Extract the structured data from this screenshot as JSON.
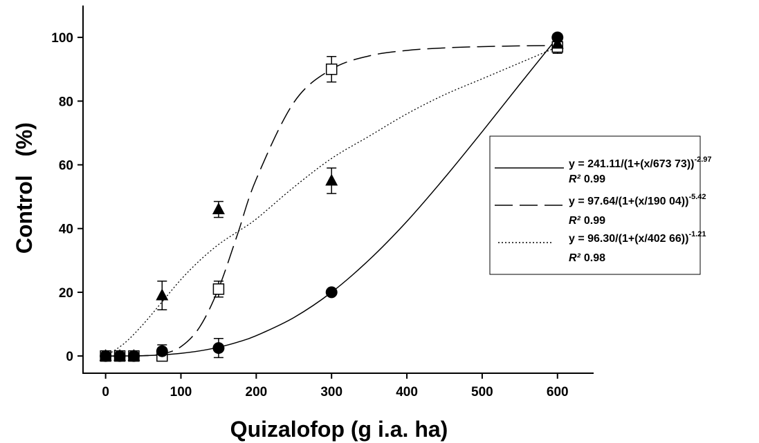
{
  "chart_data": {
    "type": "scatter",
    "xlabel": "Quizalofop (g i.a. ha)",
    "ylabel": "Control   (%)",
    "x": [
      0,
      18.75,
      37.5,
      75,
      150,
      300,
      600
    ],
    "xlim": [
      -30,
      648
    ],
    "xticks": [
      0,
      100,
      200,
      300,
      400,
      500,
      600
    ],
    "ylim": [
      -5.4,
      110
    ],
    "yticks": [
      0,
      20,
      40,
      60,
      80,
      100
    ],
    "color": "#000000",
    "series": [
      {
        "marker": "square",
        "line_style": "dashed",
        "values": [
          0,
          0,
          0,
          0,
          21,
          90,
          97
        ],
        "errors": [
          0,
          0,
          0,
          1,
          2.5,
          4,
          2
        ],
        "curve": {
          "x": [
            0,
            25,
            50,
            75,
            100,
            125,
            150,
            175,
            200,
            250,
            300,
            350,
            400,
            450,
            500,
            550,
            600
          ],
          "y": [
            0,
            0,
            0.07,
            0.63,
            2.92,
            9.14,
            21.2,
            38.1,
            55.5,
            79.6,
            90,
            94.2,
            95.9,
            96.7,
            97.1,
            97.33,
            97.45
          ]
        },
        "equation": "y = 97.64/(1+(x/190 04))",
        "exponent": "-5.42",
        "r2_label": "R²",
        "r2": 0.99
      },
      {
        "marker": "triangle",
        "line_style": "dotted",
        "values": [
          0,
          0,
          0,
          19,
          46,
          55,
          98
        ],
        "errors": [
          0,
          0,
          0,
          4.5,
          2.5,
          4,
          2
        ],
        "curve": {
          "x": [
            0,
            25,
            50,
            75,
            100,
            125,
            150,
            175,
            200,
            250,
            300,
            350,
            400,
            450,
            500,
            550,
            600
          ],
          "y": [
            0,
            4,
            10,
            17,
            24,
            30,
            35,
            39,
            43,
            53,
            62,
            69,
            76,
            82,
            87,
            92,
            97
          ]
        },
        "equation": " y = 96.30/(1+(x/402 66))",
        "exponent": "-1.21",
        "r2_label": "R²",
        "r2": 0.98
      },
      {
        "marker": "circle",
        "line_style": "solid",
        "values": [
          0,
          0,
          0,
          1.5,
          2.5,
          20,
          100
        ],
        "errors": [
          0,
          0,
          0,
          2,
          3,
          0,
          1
        ],
        "curve": {
          "x": [
            0,
            25,
            50,
            75,
            100,
            125,
            150,
            175,
            200,
            250,
            300,
            350,
            400,
            450,
            500,
            550,
            600
          ],
          "y": [
            0,
            0.01,
            0.11,
            0.35,
            0.83,
            1.61,
            2.75,
            4.32,
            6.38,
            12.07,
            20,
            30.2,
            42.25,
            55.9,
            70.4,
            85.3,
            100
          ]
        },
        "equation": "y = 241.11/(1+(x/673 73))",
        "exponent": "-2.97",
        "r2_label": "R²",
        "r2": 0.99
      }
    ]
  }
}
